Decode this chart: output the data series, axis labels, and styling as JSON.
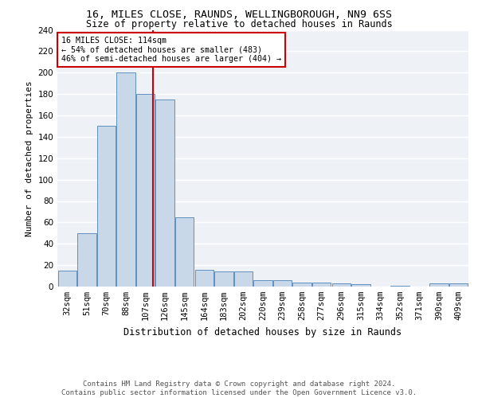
{
  "title1": "16, MILES CLOSE, RAUNDS, WELLINGBOROUGH, NN9 6SS",
  "title2": "Size of property relative to detached houses in Raunds",
  "xlabel": "Distribution of detached houses by size in Raunds",
  "ylabel": "Number of detached properties",
  "categories": [
    "32sqm",
    "51sqm",
    "70sqm",
    "88sqm",
    "107sqm",
    "126sqm",
    "145sqm",
    "164sqm",
    "183sqm",
    "202sqm",
    "220sqm",
    "239sqm",
    "258sqm",
    "277sqm",
    "296sqm",
    "315sqm",
    "334sqm",
    "352sqm",
    "371sqm",
    "390sqm",
    "409sqm"
  ],
  "values": [
    15,
    50,
    150,
    200,
    180,
    175,
    65,
    16,
    14,
    14,
    6,
    6,
    4,
    4,
    3,
    2,
    0,
    1,
    0,
    3,
    3
  ],
  "bar_color": "#c8d8e8",
  "bar_edge_color": "#6090c0",
  "vline_color": "#cc0000",
  "vline_x": 4.37,
  "annotation_text": "16 MILES CLOSE: 114sqm\n← 54% of detached houses are smaller (483)\n46% of semi-detached houses are larger (404) →",
  "annotation_box_color": "#cc0000",
  "ylim": [
    0,
    240
  ],
  "yticks": [
    0,
    20,
    40,
    60,
    80,
    100,
    120,
    140,
    160,
    180,
    200,
    220,
    240
  ],
  "background_color": "#eef2f7",
  "grid_color": "#ffffff",
  "title1_fontsize": 9.5,
  "title2_fontsize": 8.5,
  "xlabel_fontsize": 8.5,
  "ylabel_fontsize": 8.0,
  "tick_fontsize": 7.5,
  "ann_fontsize": 7.2,
  "footer_fontsize": 6.5,
  "footer1": "Contains HM Land Registry data © Crown copyright and database right 2024.",
  "footer2": "Contains public sector information licensed under the Open Government Licence v3.0."
}
